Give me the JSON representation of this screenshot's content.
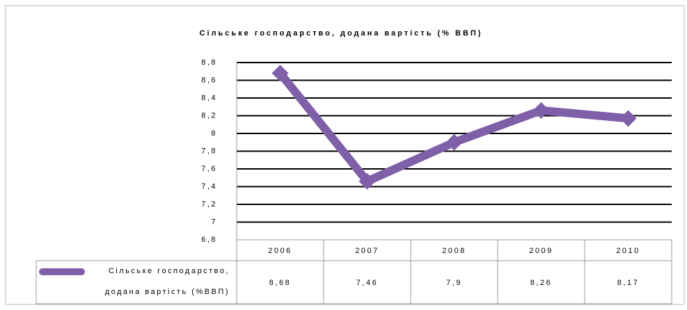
{
  "chart_data": {
    "type": "line",
    "title": "Сільське господарство, додана вартість (% ВВП)",
    "categories": [
      "2006",
      "2007",
      "2008",
      "2009",
      "2010"
    ],
    "series": [
      {
        "name": "Сільське господарство, додана вартість (%ВВП)",
        "color": "#7f60a8",
        "values": [
          8.68,
          7.46,
          7.9,
          8.26,
          8.17
        ],
        "value_labels": [
          "8,68",
          "7,46",
          "7,9",
          "8,26",
          "8,17"
        ]
      }
    ],
    "ylim": [
      6.8,
      8.8
    ],
    "yticks": [
      {
        "value": 6.8,
        "label": "6,8"
      },
      7,
      {
        "value": 7.2,
        "label": "7,2"
      },
      {
        "value": 7.4,
        "label": "7,4"
      },
      {
        "value": 7.6,
        "label": "7,6"
      },
      {
        "value": 7.8,
        "label": "7,8"
      },
      8,
      {
        "value": 8.2,
        "label": "8,2"
      },
      {
        "value": 8.4,
        "label": "8,4"
      },
      {
        "value": 8.6,
        "label": "8,6"
      },
      {
        "value": 8.8,
        "label": "8,8"
      }
    ],
    "grid": true
  }
}
